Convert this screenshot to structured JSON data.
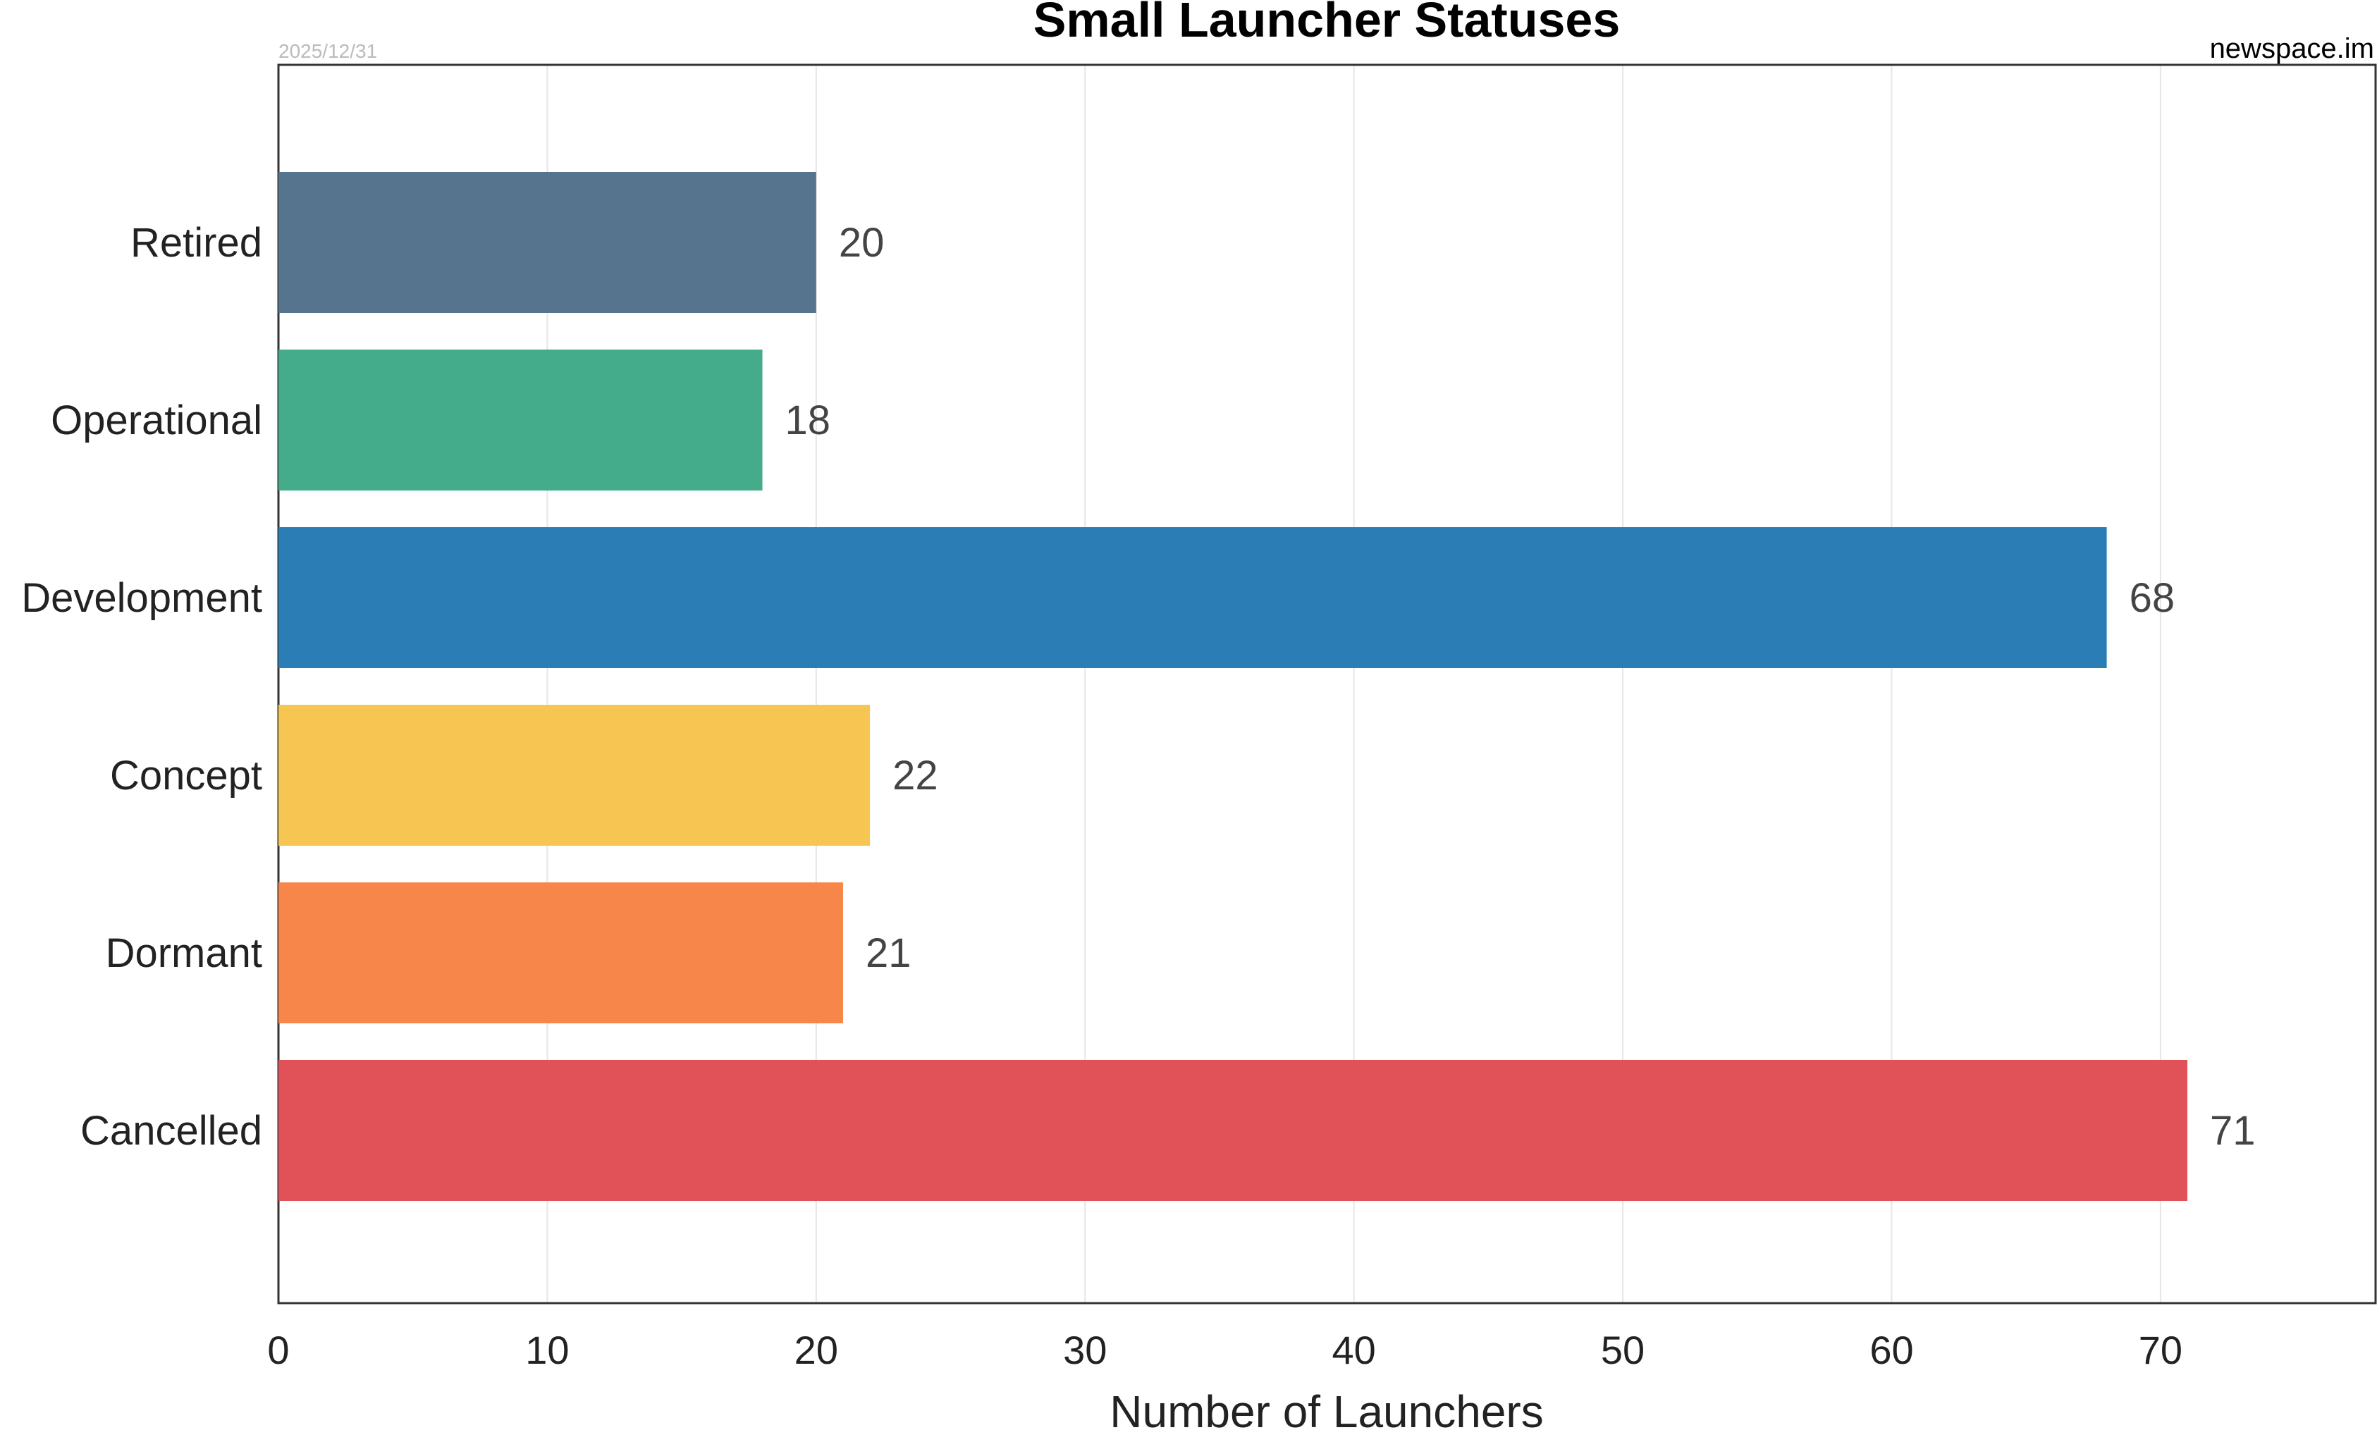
{
  "header": {
    "title": "Small Launcher Statuses",
    "date": "2025/12/31",
    "source": "newspace.im"
  },
  "chart_data": {
    "type": "bar",
    "orientation": "horizontal",
    "title": "Small Launcher Statuses",
    "xlabel": "Number of Launchers",
    "ylabel": "",
    "categories": [
      "Retired",
      "Operational",
      "Development",
      "Concept",
      "Dormant",
      "Cancelled"
    ],
    "values": [
      20,
      18,
      68,
      22,
      21,
      71
    ],
    "colors": [
      "#57748f",
      "#44ab8b",
      "#2a7eb5",
      "#f7c652",
      "#f7864a",
      "#e05257"
    ],
    "xlim": [
      0,
      78
    ],
    "xticks": [
      0,
      10,
      20,
      30,
      40,
      50,
      60,
      70
    ],
    "grid": "vertical",
    "data_labels": true
  }
}
